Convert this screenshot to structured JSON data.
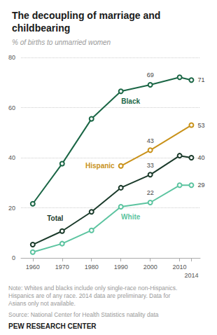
{
  "chart_data": {
    "type": "line",
    "title": "The decoupling of marriage and\nchildbearing",
    "subtitle": "% of births to unmarried women",
    "note": "Note: Whites and blacks include only single-race non-Hispanics.\nHispanics are of any race. 2014 data are preliminary. Data for\nAsians only not available.",
    "source": "Source: National Center for Health Statistics natality data",
    "branding": "PEW RESEARCH CENTER",
    "x": [
      1960,
      1970,
      1980,
      1990,
      2000,
      2010,
      2014
    ],
    "xlim": [
      1956,
      2017
    ],
    "xticks": [
      1960,
      1970,
      1980,
      1990,
      2000,
      2010,
      2014
    ],
    "ylim": [
      0,
      80
    ],
    "yticks": [
      0,
      20,
      40,
      60,
      80
    ],
    "grid": true,
    "marker": "circle",
    "series": [
      {
        "name": "Black",
        "color": "#1a6645",
        "values": [
          21.6,
          37.6,
          55.5,
          66.5,
          69.1,
          72.1,
          71
        ],
        "value_labels": [
          null,
          null,
          null,
          null,
          "69",
          null,
          "71"
        ]
      },
      {
        "name": "Hispanic",
        "color": "#c9921a",
        "x": [
          1990,
          2000,
          2014
        ],
        "values": [
          36.7,
          43.0,
          53.0
        ],
        "value_labels": [
          null,
          "43",
          "53"
        ]
      },
      {
        "name": "Total",
        "color": "#1a3a2a",
        "values": [
          5.3,
          10.7,
          18.4,
          28.0,
          33.2,
          40.8,
          40
        ],
        "value_labels": [
          null,
          null,
          null,
          null,
          "33",
          null,
          "40"
        ]
      },
      {
        "name": "White",
        "color": "#5cc4a0",
        "values": [
          2.3,
          5.7,
          11.0,
          20.4,
          22.1,
          29.0,
          29
        ],
        "value_labels": [
          null,
          null,
          null,
          null,
          "22",
          null,
          "29"
        ]
      }
    ]
  }
}
